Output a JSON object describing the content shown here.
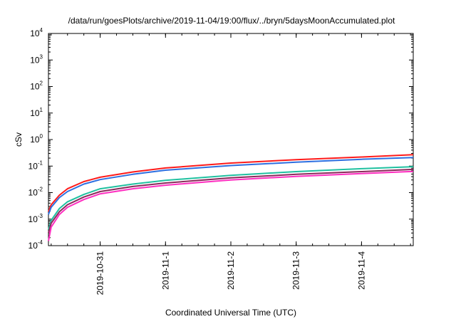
{
  "chart_data": {
    "type": "line",
    "title": "/data/run/goesPlots/archive/2019-11-04/19:00/flux/../bryn/5daysMoonAccumulated.plot",
    "xlabel": "Coordinated Universal Time (UTC)",
    "ylabel": "cSv",
    "x_scale": "time",
    "y_scale": "log",
    "xlim": [
      "2019-10-30 05:00",
      "2019-11-04 19:00"
    ],
    "ylim": [
      0.0001,
      10000
    ],
    "x_ticks": [
      "2019-10-31",
      "2019-11-1",
      "2019-11-2",
      "2019-11-3",
      "2019-11-4"
    ],
    "y_ticks": [
      {
        "base": "10",
        "exp": "-4"
      },
      {
        "base": "10",
        "exp": "-3"
      },
      {
        "base": "10",
        "exp": "-2"
      },
      {
        "base": "10",
        "exp": "-1"
      },
      {
        "base": "10",
        "exp": "0"
      },
      {
        "base": "10",
        "exp": "1"
      },
      {
        "base": "10",
        "exp": "2"
      },
      {
        "base": "10",
        "exp": "3"
      },
      {
        "base": "10",
        "exp": "4"
      }
    ],
    "grid": false,
    "legend": false,
    "series": [
      {
        "color": "#ff1a1a",
        "x": [
          "2019-10-30 05:00",
          "2019-10-30 06:00",
          "2019-10-30 09:00",
          "2019-10-30 12:00",
          "2019-10-30 18:00",
          "2019-10-31 00:00",
          "2019-10-31 12:00",
          "2019-11-01 00:00",
          "2019-11-02 00:00",
          "2019-11-03 00:00",
          "2019-11-04 00:00",
          "2019-11-04 19:00"
        ],
        "values": [
          0.0019,
          0.0035,
          0.008,
          0.014,
          0.026,
          0.038,
          0.06,
          0.085,
          0.13,
          0.175,
          0.22,
          0.27
        ]
      },
      {
        "color": "#2e6fe0",
        "x": [
          "2019-10-30 05:00",
          "2019-10-30 06:00",
          "2019-10-30 09:00",
          "2019-10-30 12:00",
          "2019-10-30 18:00",
          "2019-10-31 00:00",
          "2019-10-31 12:00",
          "2019-11-01 00:00",
          "2019-11-02 00:00",
          "2019-11-03 00:00",
          "2019-11-04 00:00",
          "2019-11-04 19:00"
        ],
        "values": [
          0.0015,
          0.0028,
          0.0065,
          0.011,
          0.021,
          0.031,
          0.049,
          0.07,
          0.105,
          0.14,
          0.18,
          0.21
        ]
      },
      {
        "color": "#20c0a0",
        "x": [
          "2019-10-30 05:00",
          "2019-10-30 06:00",
          "2019-10-30 09:00",
          "2019-10-30 12:00",
          "2019-10-30 18:00",
          "2019-10-31 00:00",
          "2019-10-31 12:00",
          "2019-11-01 00:00",
          "2019-11-02 00:00",
          "2019-11-03 00:00",
          "2019-11-04 00:00",
          "2019-11-04 19:00"
        ],
        "values": [
          0.0004,
          0.0009,
          0.0025,
          0.0045,
          0.0085,
          0.014,
          0.021,
          0.029,
          0.045,
          0.062,
          0.08,
          0.095
        ]
      },
      {
        "color": "#8a2a5a",
        "x": [
          "2019-10-30 05:00",
          "2019-10-30 06:00",
          "2019-10-30 09:00",
          "2019-10-30 12:00",
          "2019-10-30 18:00",
          "2019-10-31 00:00",
          "2019-10-31 12:00",
          "2019-11-01 00:00",
          "2019-11-02 00:00",
          "2019-11-03 00:00",
          "2019-11-04 00:00",
          "2019-11-04 19:00"
        ],
        "values": [
          0.0003,
          0.0007,
          0.0019,
          0.0035,
          0.0068,
          0.011,
          0.017,
          0.023,
          0.036,
          0.049,
          0.062,
          0.075
        ]
      },
      {
        "color": "#ff2ec0",
        "x": [
          "2019-10-30 05:00",
          "2019-10-30 06:00",
          "2019-10-30 09:00",
          "2019-10-30 12:00",
          "2019-10-30 18:00",
          "2019-10-31 00:00",
          "2019-10-31 12:00",
          "2019-11-01 00:00",
          "2019-11-02 00:00",
          "2019-11-03 00:00",
          "2019-11-04 00:00",
          "2019-11-04 19:00"
        ],
        "values": [
          0.00015,
          0.0005,
          0.0015,
          0.0028,
          0.0055,
          0.009,
          0.014,
          0.019,
          0.03,
          0.041,
          0.052,
          0.063
        ]
      }
    ]
  }
}
